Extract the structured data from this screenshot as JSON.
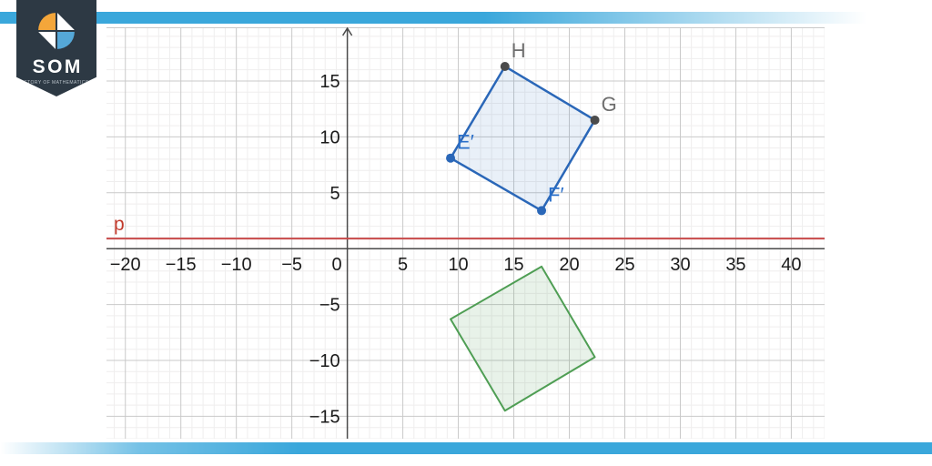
{
  "logo": {
    "title": "SOM",
    "subtitle": "STORY OF MATHEMATICS",
    "badge_color": "#2d3944",
    "icon_orange": "#f4a63a",
    "icon_blue": "#55a8d8",
    "icon_white": "#ffffff"
  },
  "stripes": {
    "color": "#3aa7db"
  },
  "chart_data": {
    "type": "scatter",
    "title": "",
    "axes": {
      "xmin": -21.7,
      "xmax": 43.0,
      "ymin": -17.0,
      "ymax": 19.8,
      "x_tick_labels": [
        -20,
        -15,
        -10,
        -5,
        0,
        5,
        10,
        15,
        20,
        25,
        30,
        35,
        40
      ],
      "y_tick_labels": [
        15,
        10,
        5,
        -5,
        -10,
        -15
      ],
      "major_step": 5,
      "minor_step": 1,
      "grid": true,
      "axis_color": "#4a4a4a",
      "major_grid_color": "#c9c9c9",
      "minor_grid_color": "#efeeee",
      "tick_label_color": "#1a1a1a"
    },
    "line_p": {
      "label": "p",
      "y": 0.9,
      "color": "#c84a4a",
      "label_color": "#c0392b"
    },
    "shapes": [
      {
        "name": "square-EFGH",
        "stroke": "#2a67b8",
        "fill": "rgba(43,103,184,0.10)",
        "stroke_width": 2.5,
        "vertices": [
          {
            "label": "E′",
            "x": 9.3,
            "y": 8.1,
            "dot": true,
            "dot_color": "#2a67b8",
            "label_color": "#2a6fc9"
          },
          {
            "label": "F′",
            "x": 17.5,
            "y": 3.4,
            "dot": true,
            "dot_color": "#2a67b8",
            "label_color": "#2a6fc9"
          },
          {
            "label": "G",
            "x": 22.3,
            "y": 11.5,
            "dot": true,
            "dot_color": "#4b4b4b",
            "label_color": "#6e6e6e"
          },
          {
            "label": "H",
            "x": 14.2,
            "y": 16.3,
            "dot": true,
            "dot_color": "#4b4b4b",
            "label_color": "#6e6e6e"
          }
        ]
      },
      {
        "name": "square-reflection",
        "stroke": "#4f9e54",
        "fill": "rgba(79,158,84,0.13)",
        "stroke_width": 2,
        "vertices": [
          {
            "label": "",
            "x": 9.3,
            "y": -6.3,
            "dot": false
          },
          {
            "label": "",
            "x": 17.5,
            "y": -1.6,
            "dot": false
          },
          {
            "label": "",
            "x": 22.3,
            "y": -9.7,
            "dot": false
          },
          {
            "label": "",
            "x": 14.2,
            "y": -14.5,
            "dot": false
          }
        ]
      }
    ]
  }
}
